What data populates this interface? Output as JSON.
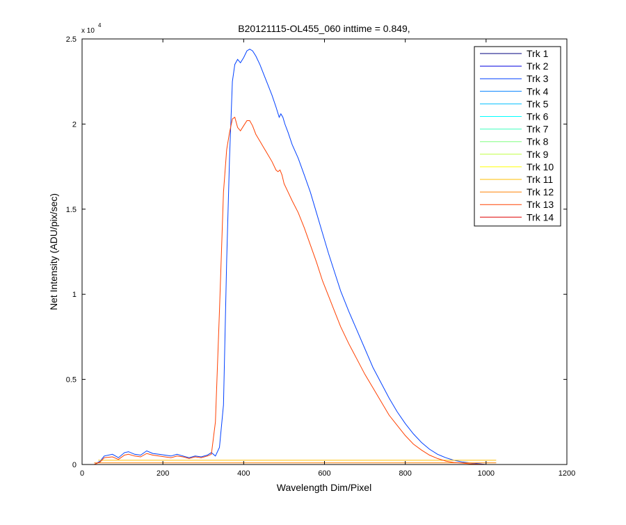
{
  "chart_data": {
    "type": "line",
    "title": "B20121115-OL455_060 inttime = 0.849,",
    "xlabel": "Wavelength Dim/Pixel",
    "ylabel": "Net Intensity (ADU/pix/sec)",
    "xlim": [
      0,
      1200
    ],
    "ylim": [
      0,
      25000
    ],
    "x_ticks": [
      0,
      200,
      400,
      600,
      800,
      1000,
      1200
    ],
    "x_tick_labels": [
      "0",
      "200",
      "400",
      "600",
      "800",
      "1000",
      "1200"
    ],
    "y_ticks": [
      0,
      5000,
      10000,
      15000,
      20000,
      25000
    ],
    "y_tick_labels": [
      "0",
      "0.5",
      "1",
      "1.5",
      "2",
      "2.5"
    ],
    "y_exponent_base": "x 10",
    "y_exponent_power": "4",
    "grid": false,
    "legend_position": "top-right",
    "series": [
      {
        "name": "Trk 1",
        "color": "#00007F",
        "x": [
          30,
          1025
        ],
        "y": [
          0,
          0
        ]
      },
      {
        "name": "Trk 2",
        "color": "#0000DF",
        "x": [
          30,
          1025
        ],
        "y": [
          0,
          0
        ]
      },
      {
        "name": "Trk 3",
        "color": "#0040FF",
        "x": [
          30,
          45,
          55,
          75,
          90,
          105,
          115,
          130,
          145,
          160,
          175,
          190,
          205,
          220,
          235,
          250,
          265,
          280,
          295,
          310,
          320,
          330,
          340,
          350,
          358,
          365,
          372,
          378,
          385,
          392,
          400,
          408,
          415,
          422,
          430,
          440,
          450,
          460,
          470,
          480,
          488,
          492,
          497,
          502,
          510,
          520,
          535,
          550,
          565,
          580,
          595,
          610,
          625,
          640,
          660,
          680,
          700,
          720,
          740,
          760,
          780,
          800,
          820,
          840,
          860,
          880,
          900,
          920,
          940,
          960,
          980,
          1000,
          1010,
          1020
        ],
        "y": [
          0,
          200,
          500,
          600,
          400,
          700,
          750,
          600,
          550,
          800,
          650,
          600,
          550,
          500,
          600,
          500,
          400,
          500,
          450,
          550,
          700,
          500,
          1000,
          3500,
          12000,
          18000,
          22500,
          23500,
          23800,
          23600,
          23900,
          24300,
          24400,
          24300,
          24000,
          23500,
          22900,
          22300,
          21700,
          21000,
          20400,
          20600,
          20400,
          20000,
          19500,
          18800,
          18000,
          17000,
          16000,
          14800,
          13600,
          12400,
          11300,
          10200,
          9000,
          7900,
          6800,
          5700,
          4800,
          3900,
          3100,
          2400,
          1800,
          1300,
          900,
          600,
          400,
          250,
          150,
          100,
          50,
          0,
          0,
          0
        ]
      },
      {
        "name": "Trk 4",
        "color": "#0080FF",
        "x": [
          30,
          1025
        ],
        "y": [
          0,
          0
        ]
      },
      {
        "name": "Trk 5",
        "color": "#00BFFF",
        "x": [
          30,
          1025
        ],
        "y": [
          0,
          0
        ]
      },
      {
        "name": "Trk 6",
        "color": "#00FFFF",
        "x": [
          30,
          1025
        ],
        "y": [
          0,
          0
        ]
      },
      {
        "name": "Trk 7",
        "color": "#40FFBF",
        "x": [
          30,
          1025
        ],
        "y": [
          0,
          0
        ]
      },
      {
        "name": "Trk 8",
        "color": "#80FF80",
        "x": [
          30,
          1025
        ],
        "y": [
          0,
          0
        ]
      },
      {
        "name": "Trk 9",
        "color": "#BFFF40",
        "x": [
          30,
          1025
        ],
        "y": [
          0,
          0
        ]
      },
      {
        "name": "Trk 10",
        "color": "#FFFF00",
        "x": [
          30,
          1025
        ],
        "y": [
          0,
          0
        ]
      },
      {
        "name": "Trk 11",
        "color": "#FFBF00",
        "x": [
          40,
          1025
        ],
        "y": [
          250,
          250
        ]
      },
      {
        "name": "Trk 12",
        "color": "#FF8000",
        "x": [
          30,
          1025
        ],
        "y": [
          100,
          100
        ]
      },
      {
        "name": "Trk 13",
        "color": "#FF4000",
        "x": [
          30,
          45,
          55,
          75,
          90,
          105,
          115,
          130,
          145,
          160,
          175,
          190,
          205,
          220,
          235,
          250,
          265,
          280,
          295,
          310,
          320,
          330,
          340,
          350,
          358,
          365,
          372,
          378,
          385,
          392,
          400,
          408,
          415,
          422,
          430,
          440,
          450,
          460,
          470,
          480,
          485,
          490,
          495,
          500,
          510,
          520,
          535,
          550,
          565,
          580,
          595,
          610,
          625,
          640,
          660,
          680,
          700,
          720,
          740,
          760,
          780,
          800,
          820,
          840,
          860,
          880,
          900,
          920,
          940,
          960,
          980,
          1000,
          1010,
          1020
        ],
        "y": [
          0,
          150,
          400,
          450,
          300,
          550,
          600,
          500,
          450,
          650,
          550,
          500,
          450,
          400,
          500,
          450,
          350,
          450,
          400,
          500,
          600,
          2500,
          9000,
          16000,
          18500,
          19500,
          20300,
          20400,
          19800,
          19600,
          19900,
          20200,
          20200,
          19900,
          19400,
          19000,
          18600,
          18200,
          17800,
          17300,
          17200,
          17300,
          17000,
          16500,
          16000,
          15500,
          14800,
          13900,
          12900,
          11900,
          10800,
          9900,
          9000,
          8100,
          7100,
          6200,
          5300,
          4500,
          3700,
          2900,
          2300,
          1700,
          1200,
          850,
          550,
          350,
          200,
          120,
          80,
          40,
          20,
          0,
          0,
          0
        ]
      },
      {
        "name": "Trk 14",
        "color": "#DF0000",
        "x": [
          30,
          1025
        ],
        "y": [
          0,
          0
        ]
      }
    ]
  }
}
